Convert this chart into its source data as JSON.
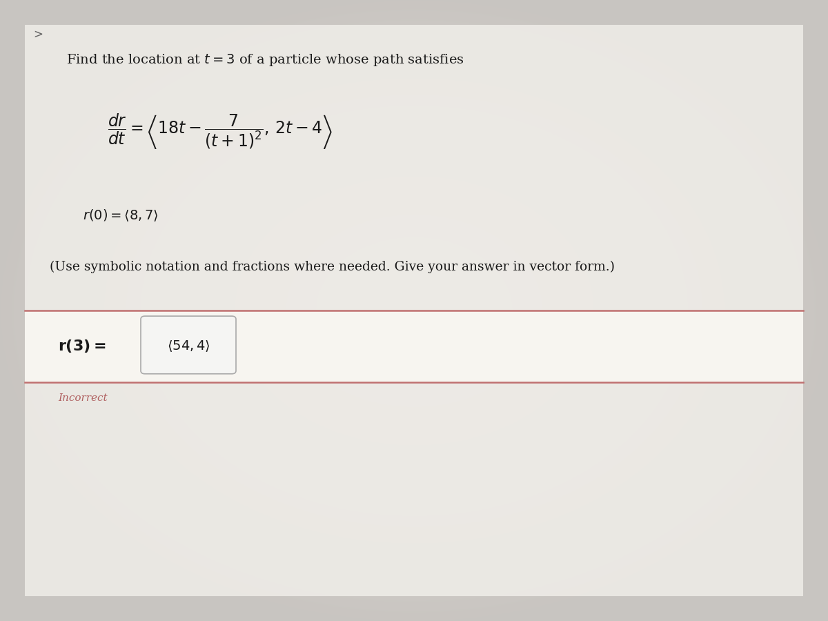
{
  "bg_outer": "#c8c5c2",
  "bg_content": "#f0eee9",
  "title_line": "Find the location at $t = 3$ of a particle whose path satisfies",
  "equation_dr_dt": "$\\dfrac{dr}{dt} = \\left\\langle 18t - \\dfrac{7}{(t+1)^2},\\, 2t - 4 \\right\\rangle$",
  "initial_condition": "$r(0) = \\langle 8, 7 \\rangle$",
  "instruction": "(Use symbolic notation and fractions where needed. Give your answer in vector form.)",
  "answer_label": "$\\mathbf{r(3) =}$",
  "answer_value": "$\\langle 54,4 \\rangle$",
  "incorrect_text": "Incorrect",
  "incorrect_color": "#b06060",
  "answer_box_bg": "#f7f5f0",
  "answer_box_border": "#c07070",
  "answer_input_bg": "#f5f5f3",
  "answer_input_border": "#aaaaaa",
  "text_color": "#1a1a1a",
  "chevron_color": "#666666",
  "font_size_title": 14,
  "font_size_eq": 17,
  "font_size_answer_label": 15,
  "font_size_answer_val": 14,
  "font_size_incorrect": 11
}
